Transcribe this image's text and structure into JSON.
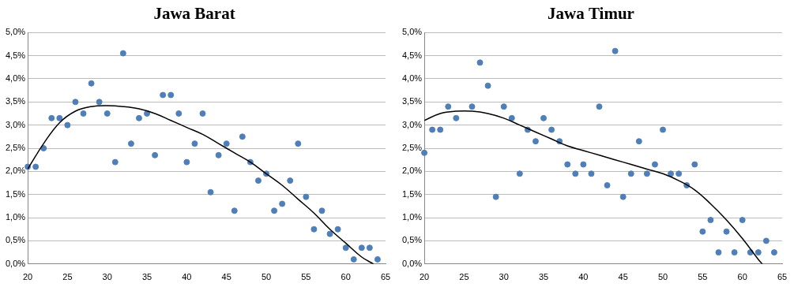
{
  "chart_data": [
    {
      "type": "scatter",
      "title": "Jawa Barat",
      "xlim": [
        20,
        65
      ],
      "xticks": [
        20,
        25,
        30,
        35,
        40,
        45,
        50,
        55,
        60,
        65
      ],
      "ylim": [
        0,
        5
      ],
      "yticks": [
        {
          "value": 0,
          "label": "0,0%"
        },
        {
          "value": 0.5,
          "label": "0,5%"
        },
        {
          "value": 1,
          "label": "1,0%"
        },
        {
          "value": 1.5,
          "label": "1,5%"
        },
        {
          "value": 2,
          "label": "2,0%"
        },
        {
          "value": 2.5,
          "label": "2,5%"
        },
        {
          "value": 3,
          "label": "3,0%"
        },
        {
          "value": 3.5,
          "label": "3,5%"
        },
        {
          "value": 4,
          "label": "4,0%"
        },
        {
          "value": 4.5,
          "label": "4,5%"
        },
        {
          "value": 5,
          "label": "5,0%"
        }
      ],
      "grid": true,
      "series": [
        {
          "type": "scatter",
          "color": "#4f7fb8",
          "marker": "circle",
          "x": [
            20,
            21,
            22,
            23,
            24,
            25,
            26,
            27,
            28,
            29,
            30,
            31,
            32,
            33,
            34,
            35,
            36,
            37,
            38,
            39,
            40,
            41,
            42,
            43,
            44,
            45,
            46,
            47,
            48,
            49,
            50,
            51,
            52,
            53,
            54,
            55,
            56,
            57,
            58,
            59,
            60,
            61,
            62,
            63,
            64
          ],
          "values": [
            2.1,
            2.1,
            2.5,
            3.15,
            3.15,
            3.0,
            3.5,
            3.25,
            3.9,
            3.5,
            3.25,
            2.2,
            4.55,
            2.6,
            3.15,
            3.25,
            2.35,
            3.65,
            3.65,
            3.25,
            2.2,
            2.6,
            3.25,
            1.55,
            2.35,
            2.6,
            1.15,
            2.75,
            2.2,
            1.8,
            1.95,
            1.15,
            1.3,
            1.8,
            2.6,
            1.45,
            0.75,
            1.15,
            0.65,
            0.75,
            0.35,
            0.1,
            0.35,
            0.35,
            0.1
          ]
        },
        {
          "type": "line",
          "color": "#000000",
          "line_style": "solid",
          "x": [
            20,
            22,
            24,
            26,
            28,
            30,
            32,
            34,
            36,
            38,
            40,
            42,
            44,
            46,
            48,
            50,
            52,
            54,
            56,
            58,
            60,
            62,
            63.5
          ],
          "values": [
            2.05,
            2.6,
            3.05,
            3.3,
            3.4,
            3.42,
            3.4,
            3.35,
            3.25,
            3.1,
            2.95,
            2.8,
            2.6,
            2.4,
            2.2,
            1.95,
            1.7,
            1.4,
            1.1,
            0.75,
            0.45,
            0.15,
            0
          ]
        }
      ]
    },
    {
      "type": "scatter",
      "title": "Jawa Timur",
      "xlim": [
        20,
        65
      ],
      "xticks": [
        20,
        25,
        30,
        35,
        40,
        45,
        50,
        55,
        60,
        65
      ],
      "ylim": [
        0,
        5
      ],
      "yticks": [
        {
          "value": 0,
          "label": "0,0%"
        },
        {
          "value": 0.5,
          "label": "0,5%"
        },
        {
          "value": 1,
          "label": "1,0%"
        },
        {
          "value": 1.5,
          "label": "1,5%"
        },
        {
          "value": 2,
          "label": "2,0%"
        },
        {
          "value": 2.5,
          "label": "2,5%"
        },
        {
          "value": 3,
          "label": "3,0%"
        },
        {
          "value": 3.5,
          "label": "3,5%"
        },
        {
          "value": 4,
          "label": "4,0%"
        },
        {
          "value": 4.5,
          "label": "4,5%"
        },
        {
          "value": 5,
          "label": "5,0%"
        }
      ],
      "grid": true,
      "series": [
        {
          "type": "scatter",
          "color": "#4f7fb8",
          "marker": "circle",
          "x": [
            20,
            21,
            22,
            23,
            24,
            26,
            27,
            28,
            29,
            30,
            31,
            32,
            33,
            34,
            35,
            36,
            37,
            38,
            39,
            40,
            41,
            42,
            43,
            44,
            45,
            46,
            47,
            48,
            49,
            50,
            51,
            52,
            53,
            54,
            55,
            56,
            57,
            58,
            59,
            60,
            61,
            62,
            63,
            64
          ],
          "values": [
            2.4,
            2.9,
            2.9,
            3.4,
            3.15,
            3.4,
            4.35,
            3.85,
            1.45,
            3.4,
            3.15,
            1.95,
            2.9,
            2.65,
            3.15,
            2.9,
            2.65,
            2.15,
            1.95,
            2.15,
            1.95,
            3.4,
            1.7,
            4.6,
            1.45,
            1.95,
            2.65,
            1.95,
            2.15,
            2.9,
            1.95,
            1.95,
            1.7,
            2.15,
            0.7,
            0.95,
            0.25,
            0.7,
            0.25,
            0.95,
            0.25,
            0.25,
            0.5,
            0.25
          ]
        },
        {
          "type": "line",
          "color": "#000000",
          "line_style": "solid",
          "x": [
            20,
            22,
            24,
            26,
            28,
            30,
            32,
            34,
            36,
            38,
            40,
            42,
            44,
            46,
            48,
            50,
            52,
            54,
            56,
            58,
            60,
            62,
            62.5
          ],
          "values": [
            3.1,
            3.25,
            3.3,
            3.3,
            3.25,
            3.15,
            3.0,
            2.85,
            2.7,
            2.55,
            2.45,
            2.35,
            2.25,
            2.15,
            2.05,
            1.95,
            1.8,
            1.6,
            1.3,
            0.95,
            0.55,
            0.1,
            0
          ]
        }
      ]
    }
  ]
}
